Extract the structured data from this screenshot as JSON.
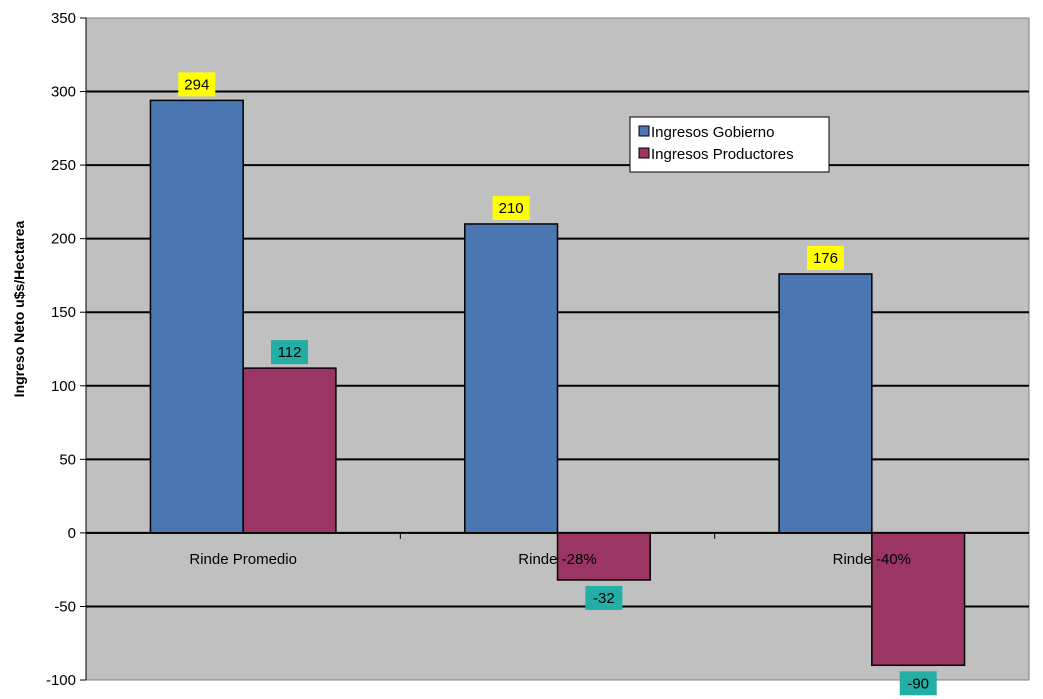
{
  "chart_data": {
    "type": "bar",
    "categories": [
      "Rinde Promedio",
      "Rinde -28%",
      "Rinde -40%"
    ],
    "series": [
      {
        "name": "Ingresos Gobierno",
        "values": [
          294,
          210,
          176
        ],
        "color": "#4a76b2",
        "label_bg": "#ffff00"
      },
      {
        "name": "Ingresos Productores",
        "values": [
          112,
          -32,
          -90
        ],
        "color": "#9b3563",
        "label_bg": "#23aea6"
      }
    ],
    "title": "",
    "xlabel": "",
    "ylabel": "Ingreso Neto u$s/Hectarea",
    "ylim": [
      -100,
      350
    ],
    "yticks": [
      350,
      300,
      250,
      200,
      150,
      100,
      50,
      0,
      -50,
      -100
    ],
    "grid": true,
    "legend_position": "top-right",
    "plot_background": "#c0c0c0"
  }
}
